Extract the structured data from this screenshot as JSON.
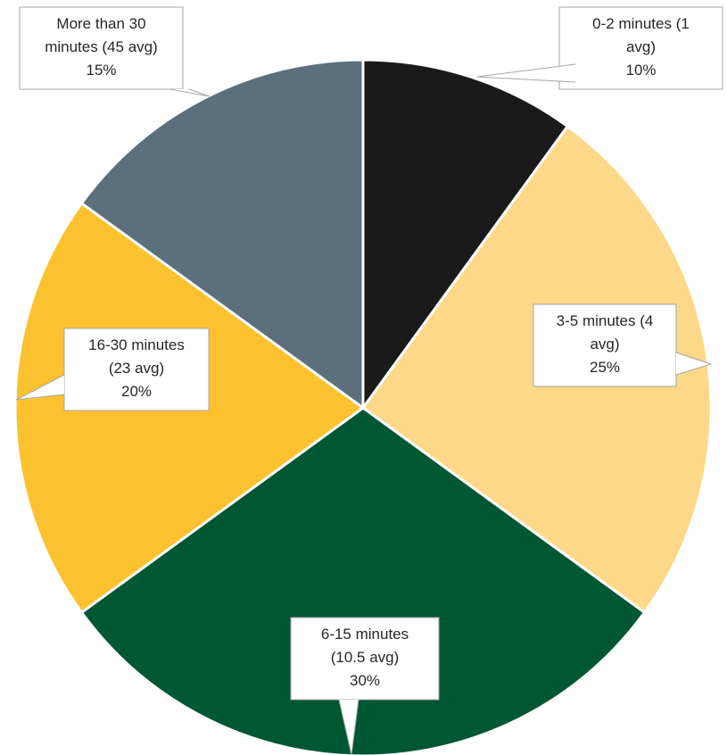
{
  "chart_data": {
    "type": "pie",
    "title": "",
    "categories": [
      "0-2 minutes (1 avg)",
      "3-5 minutes (4 avg)",
      "6-15 minutes (10.5 avg)",
      "16-30 minutes (23 avg)",
      "More than 30 minutes (45 avg)"
    ],
    "values": [
      10,
      25,
      30,
      20,
      15
    ],
    "unit": "%",
    "colors": [
      "#1a1a1a",
      "#fdd889",
      "#005733",
      "#fcc12e",
      "#5b6f7c"
    ],
    "legend": "none",
    "labels": [
      {
        "lines": [
          "0-2 minutes (1",
          "avg)",
          "10%"
        ]
      },
      {
        "lines": [
          "3-5 minutes (4",
          "avg)",
          "25%"
        ]
      },
      {
        "lines": [
          "6-15 minutes",
          "(10.5 avg)",
          "30%"
        ]
      },
      {
        "lines": [
          "16-30 minutes",
          "(23 avg)",
          "20%"
        ]
      },
      {
        "lines": [
          "More than 30",
          "minutes (45 avg)",
          "15%"
        ]
      }
    ]
  }
}
